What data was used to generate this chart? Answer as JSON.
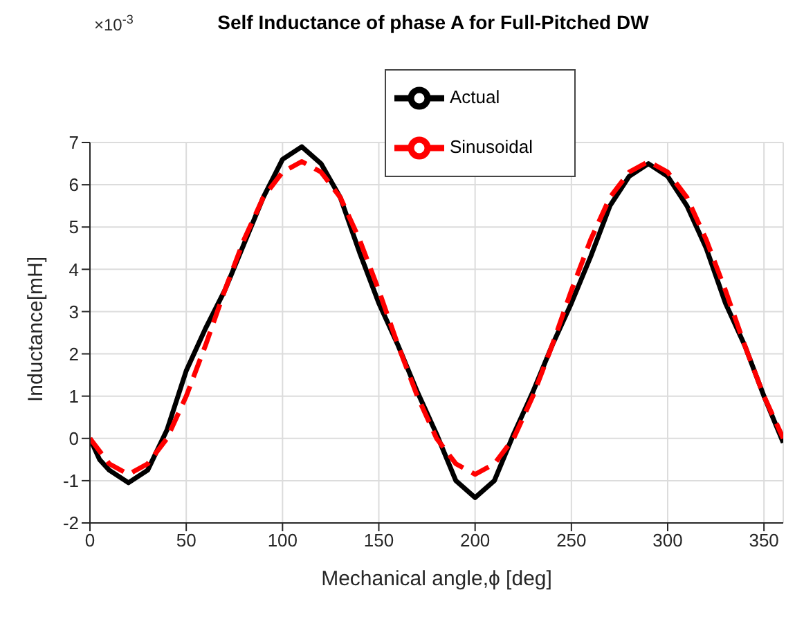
{
  "chart_data": {
    "type": "line",
    "title": "Self Inductance of phase A for Full-Pitched DW",
    "xlabel": "Mechanical angle,ϕ [deg]",
    "ylabel": "Inductance[mH]",
    "annotations": [
      "×10$^{-3}$"
    ],
    "series": [
      {
        "name": "Actual",
        "color": "#000000",
        "line_style": "solid",
        "x": [
          0,
          5,
          10,
          20,
          30,
          40,
          50,
          60,
          70,
          80,
          90,
          100,
          110,
          120,
          130,
          140,
          150,
          160,
          170,
          180,
          190,
          200,
          210,
          220,
          230,
          240,
          250,
          260,
          270,
          280,
          290,
          300,
          310,
          320,
          330,
          340,
          350,
          360
        ],
        "values": [
          0,
          -0.5,
          -0.75,
          -1.05,
          -0.75,
          0.2,
          1.6,
          2.6,
          3.5,
          4.6,
          5.7,
          6.6,
          6.9,
          6.5,
          5.7,
          4.4,
          3.2,
          2.2,
          1.1,
          0.1,
          -1.0,
          -1.4,
          -1.0,
          0.1,
          1.1,
          2.2,
          3.2,
          4.3,
          5.5,
          6.2,
          6.5,
          6.2,
          5.5,
          4.5,
          3.2,
          2.2,
          1.0,
          -0.1
        ]
      },
      {
        "name": "Sinusoidal",
        "color": "#ff0000",
        "line_style": "dashed",
        "x": [
          0,
          10,
          20,
          30,
          40,
          50,
          60,
          70,
          80,
          90,
          100,
          110,
          120,
          130,
          140,
          150,
          160,
          170,
          180,
          190,
          200,
          210,
          220,
          230,
          240,
          250,
          260,
          270,
          280,
          290,
          300,
          310,
          320,
          330,
          340,
          350,
          360
        ],
        "values": [
          0,
          -0.6,
          -0.85,
          -0.6,
          0,
          1.0,
          2.2,
          3.5,
          4.7,
          5.7,
          6.3,
          6.55,
          6.3,
          5.7,
          4.7,
          3.5,
          2.2,
          1.0,
          0,
          -0.6,
          -0.85,
          -0.6,
          0,
          1.0,
          2.2,
          3.5,
          4.7,
          5.7,
          6.3,
          6.55,
          6.3,
          5.7,
          4.7,
          3.5,
          2.2,
          1.0,
          0
        ]
      }
    ],
    "xlim": [
      0,
      360
    ],
    "xticks": [
      0,
      50,
      100,
      150,
      200,
      250,
      300,
      350
    ],
    "ylim": [
      -2,
      7
    ],
    "yticks": [
      -2,
      -1,
      0,
      1,
      2,
      3,
      4,
      5,
      6,
      7
    ],
    "grid": true,
    "legend": "top"
  }
}
